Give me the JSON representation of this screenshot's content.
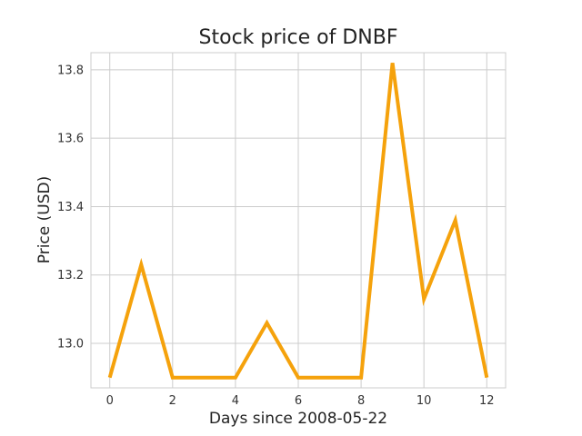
{
  "chart_data": {
    "type": "line",
    "title": "Stock price of DNBF",
    "xlabel": "Days since 2008-05-22",
    "ylabel": "Price (USD)",
    "x": [
      0,
      1,
      2,
      3,
      4,
      5,
      6,
      7,
      8,
      9,
      10,
      11,
      12
    ],
    "series": [
      {
        "values": [
          12.9,
          13.23,
          12.9,
          12.9,
          12.9,
          13.06,
          12.9,
          12.9,
          12.9,
          13.82,
          13.13,
          13.36,
          12.9
        ],
        "color": "#f5a20c"
      }
    ],
    "xlim": [
      -0.6,
      12.6
    ],
    "ylim": [
      12.87,
      13.85
    ],
    "xticks": [
      0,
      2,
      4,
      6,
      8,
      10,
      12
    ],
    "xtick_labels": [
      "0",
      "2",
      "4",
      "6",
      "8",
      "10",
      "12"
    ],
    "yticks": [
      13.0,
      13.2,
      13.4,
      13.6,
      13.8
    ],
    "ytick_labels": [
      "13.0",
      "13.2",
      "13.4",
      "13.6",
      "13.8"
    ],
    "grid": true,
    "legend": false
  }
}
